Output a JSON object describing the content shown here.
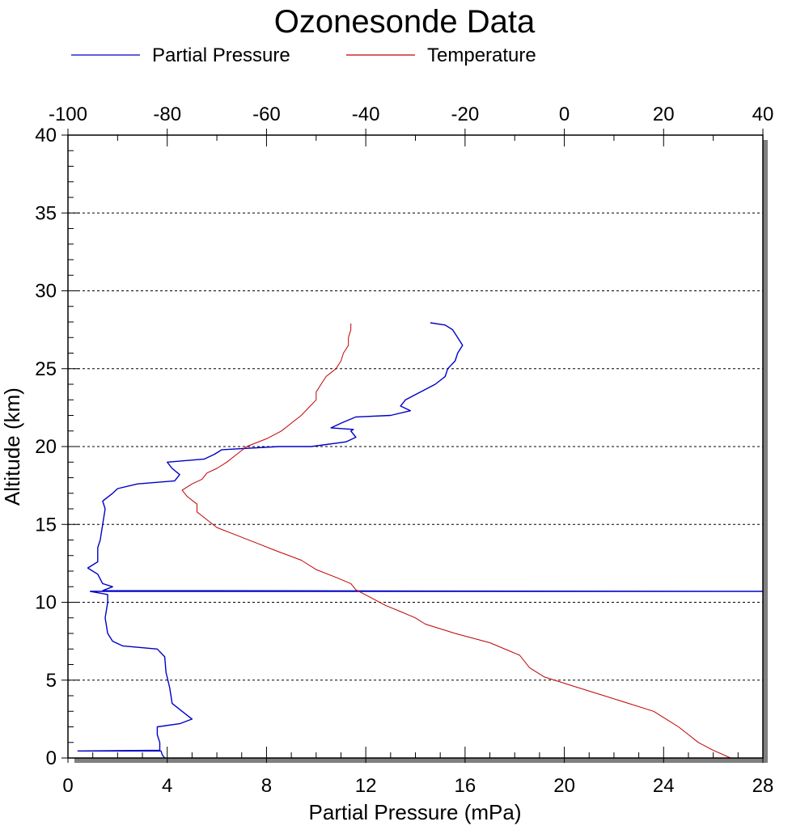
{
  "chart_data": {
    "type": "line",
    "title": "Ozonesonde Data",
    "xlabel": "Partial Pressure (mPa)",
    "ylabel": "Altitude (km)",
    "xlim": [
      0,
      28
    ],
    "ylim": [
      0,
      40
    ],
    "x2lim": [
      -100,
      40
    ],
    "x_ticks": [
      "0",
      "4",
      "8",
      "12",
      "16",
      "20",
      "24",
      "28"
    ],
    "x2_ticks": [
      "-100",
      "-80",
      "-60",
      "-40",
      "-20",
      "0",
      "20",
      "40"
    ],
    "y_ticks": [
      "0",
      "5",
      "10",
      "15",
      "20",
      "25",
      "30",
      "35",
      "40"
    ],
    "grid": "horizontal dashed at y-ticks",
    "legend_position": "top-left",
    "series": [
      {
        "name": "Partial Pressure",
        "axis": "bottom",
        "color": "#0000c8",
        "points": [
          [
            3.9,
            0.0
          ],
          [
            3.8,
            0.2
          ],
          [
            3.75,
            0.45
          ],
          [
            0.4,
            0.45
          ],
          [
            3.7,
            0.5
          ],
          [
            3.7,
            1.0
          ],
          [
            3.6,
            1.5
          ],
          [
            3.6,
            2.0
          ],
          [
            4.5,
            2.2
          ],
          [
            5.0,
            2.5
          ],
          [
            4.6,
            3.0
          ],
          [
            4.2,
            3.5
          ],
          [
            4.1,
            4.5
          ],
          [
            3.95,
            5.5
          ],
          [
            3.9,
            6.5
          ],
          [
            3.6,
            7.0
          ],
          [
            2.2,
            7.2
          ],
          [
            1.8,
            7.5
          ],
          [
            1.6,
            8.0
          ],
          [
            1.5,
            9.0
          ],
          [
            1.6,
            10.0
          ],
          [
            1.6,
            10.5
          ],
          [
            0.9,
            10.7
          ],
          [
            28.0,
            10.7
          ],
          [
            1.4,
            10.75
          ],
          [
            1.8,
            11.0
          ],
          [
            1.4,
            11.2
          ],
          [
            1.2,
            11.8
          ],
          [
            0.8,
            12.2
          ],
          [
            1.2,
            12.6
          ],
          [
            1.2,
            13.5
          ],
          [
            1.3,
            14.0
          ],
          [
            1.4,
            15.0
          ],
          [
            1.5,
            16.0
          ],
          [
            1.4,
            16.5
          ],
          [
            1.8,
            17.0
          ],
          [
            2.0,
            17.3
          ],
          [
            2.8,
            17.6
          ],
          [
            4.3,
            17.8
          ],
          [
            4.5,
            18.2
          ],
          [
            4.2,
            18.6
          ],
          [
            4.0,
            19.0
          ],
          [
            5.5,
            19.2
          ],
          [
            5.9,
            19.5
          ],
          [
            6.2,
            19.8
          ],
          [
            8.5,
            20.0
          ],
          [
            9.8,
            20.0
          ],
          [
            11.2,
            20.3
          ],
          [
            11.6,
            20.6
          ],
          [
            11.4,
            21.0
          ],
          [
            11.5,
            21.1
          ],
          [
            10.6,
            21.2
          ],
          [
            11.0,
            21.5
          ],
          [
            11.6,
            21.9
          ],
          [
            13.0,
            22.0
          ],
          [
            13.8,
            22.3
          ],
          [
            13.4,
            22.6
          ],
          [
            13.6,
            23.0
          ],
          [
            14.2,
            23.5
          ],
          [
            14.8,
            24.0
          ],
          [
            15.2,
            24.5
          ],
          [
            15.3,
            25.0
          ],
          [
            15.6,
            25.5
          ],
          [
            15.7,
            26.0
          ],
          [
            15.9,
            26.5
          ],
          [
            15.7,
            27.0
          ],
          [
            15.5,
            27.5
          ],
          [
            15.2,
            27.8
          ],
          [
            14.6,
            27.95
          ]
        ]
      },
      {
        "name": "Temperature",
        "axis": "top",
        "color": "#c00000",
        "points": [
          [
            33.5,
            0.0
          ],
          [
            30.0,
            0.5
          ],
          [
            27.0,
            1.0
          ],
          [
            25.0,
            1.5
          ],
          [
            23.0,
            2.0
          ],
          [
            21.0,
            2.4
          ],
          [
            18.0,
            3.0
          ],
          [
            13.0,
            3.5
          ],
          [
            8.0,
            4.0
          ],
          [
            2.0,
            4.6
          ],
          [
            -4.0,
            5.2
          ],
          [
            -7.0,
            5.8
          ],
          [
            -9.0,
            6.6
          ],
          [
            -15.0,
            7.4
          ],
          [
            -22.0,
            8.0
          ],
          [
            -28.0,
            8.6
          ],
          [
            -30.0,
            9.0
          ],
          [
            -33.0,
            9.4
          ],
          [
            -36.0,
            9.8
          ],
          [
            -39.0,
            10.3
          ],
          [
            -42.0,
            10.8
          ],
          [
            -43.0,
            11.2
          ],
          [
            -46.0,
            11.6
          ],
          [
            -50.0,
            12.1
          ],
          [
            -53.0,
            12.7
          ],
          [
            -58.0,
            13.3
          ],
          [
            -62.0,
            13.8
          ],
          [
            -66.0,
            14.3
          ],
          [
            -70.0,
            14.8
          ],
          [
            -72.0,
            15.3
          ],
          [
            -74.0,
            15.8
          ],
          [
            -74.0,
            16.3
          ],
          [
            -76.0,
            16.8
          ],
          [
            -77.0,
            17.2
          ],
          [
            -75.0,
            17.6
          ],
          [
            -73.0,
            17.9
          ],
          [
            -72.0,
            18.3
          ],
          [
            -70.0,
            18.6
          ],
          [
            -68.0,
            19.0
          ],
          [
            -66.0,
            19.5
          ],
          [
            -64.0,
            20.0
          ],
          [
            -60.0,
            20.5
          ],
          [
            -57.0,
            21.0
          ],
          [
            -55.0,
            21.5
          ],
          [
            -53.0,
            22.0
          ],
          [
            -51.5,
            22.5
          ],
          [
            -50.0,
            23.0
          ],
          [
            -50.0,
            23.5
          ],
          [
            -49.0,
            24.0
          ],
          [
            -48.0,
            24.5
          ],
          [
            -46.0,
            25.0
          ],
          [
            -45.0,
            25.5
          ],
          [
            -44.5,
            26.0
          ],
          [
            -43.5,
            26.5
          ],
          [
            -43.5,
            27.0
          ],
          [
            -43.0,
            27.5
          ],
          [
            -43.0,
            27.9
          ]
        ]
      }
    ]
  },
  "legend": {
    "items": [
      {
        "label": "Partial Pressure",
        "color": "#0000c8"
      },
      {
        "label": "Temperature",
        "color": "#c00000"
      }
    ]
  }
}
